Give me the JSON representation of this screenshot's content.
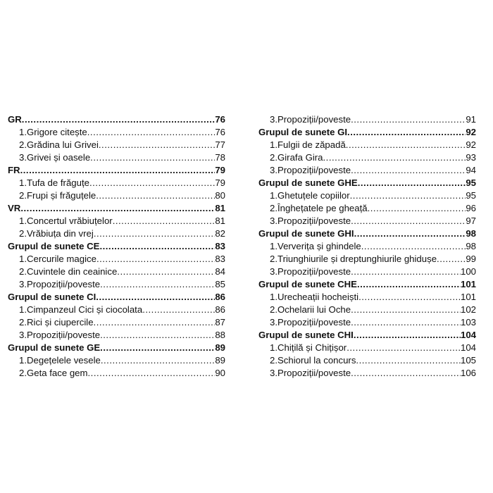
{
  "toc": {
    "left": [
      {
        "t": "GR",
        "p": "76",
        "h": true
      },
      {
        "t": "1.Grigore citește",
        "p": "76"
      },
      {
        "t": "2.Grădina lui Grivei",
        "p": "77"
      },
      {
        "t": "3.Grivei și oasele",
        "p": "78"
      },
      {
        "t": "FR",
        "p": "79",
        "h": true
      },
      {
        "t": "1.Tufa de frăguțe",
        "p": "79"
      },
      {
        "t": "2.Frupi și frăguțele",
        "p": "80"
      },
      {
        "t": "VR",
        "p": "81",
        "h": true
      },
      {
        "t": "1.Concertul vrăbiuțelor",
        "p": "81"
      },
      {
        "t": "2.Vrăbiuța din vrej",
        "p": "82"
      },
      {
        "t": "Grupul de sunete CE",
        "p": "83",
        "h": true
      },
      {
        "t": "1.Cercurile magice",
        "p": "83"
      },
      {
        "t": "2.Cuvintele din ceainice",
        "p": "84"
      },
      {
        "t": "3.Propoziții/poveste",
        "p": "85"
      },
      {
        "t": "Grupul de sunete CI",
        "p": "86",
        "h": true
      },
      {
        "t": "1.Cimpanzeul Cici și ciocolata",
        "p": "86"
      },
      {
        "t": "2.Rici și ciupercile",
        "p": "87"
      },
      {
        "t": "3.Propoziții/poveste",
        "p": "88"
      },
      {
        "t": "Grupul de sunete GE",
        "p": "89",
        "h": true
      },
      {
        "t": "1.Degețelele vesele",
        "p": "89"
      },
      {
        "t": "2.Geta face gem",
        "p": "90"
      }
    ],
    "right": [
      {
        "t": "3.Propoziții/poveste",
        "p": "91"
      },
      {
        "t": "Grupul de sunete GI",
        "p": "92",
        "h": true
      },
      {
        "t": "1.Fulgii de zăpadă",
        "p": "92"
      },
      {
        "t": "2.Girafa Gira",
        "p": "93"
      },
      {
        "t": "3.Propoziții/poveste",
        "p": "94"
      },
      {
        "t": "Grupul de sunete GHE",
        "p": "95",
        "h": true
      },
      {
        "t": "1.Ghetuțele copiilor",
        "p": "95"
      },
      {
        "t": "2.Înghețatele pe gheață",
        "p": "96"
      },
      {
        "t": "3.Propoziții/poveste",
        "p": "97"
      },
      {
        "t": "Grupul de sunete GHI",
        "p": "98",
        "h": true
      },
      {
        "t": "1.Ververița și ghindele",
        "p": "98"
      },
      {
        "t": "2.Triunghiurile și dreptunghiurile ghidușe",
        "p": "99"
      },
      {
        "t": "3.Propoziții/poveste",
        "p": "100"
      },
      {
        "t": "Grupul de sunete CHE",
        "p": "101",
        "h": true
      },
      {
        "t": "1.Urecheații hocheiști",
        "p": "101"
      },
      {
        "t": "2.Ochelarii lui Oche",
        "p": "102"
      },
      {
        "t": "3.Propoziții/poveste",
        "p": "103"
      },
      {
        "t": "Grupul de sunete CHI",
        "p": "104",
        "h": true
      },
      {
        "t": "1.Chițilă și Chițișor",
        "p": "104"
      },
      {
        "t": "2.Schiorul la concurs",
        "p": "105"
      },
      {
        "t": "3.Propoziții/poveste",
        "p": "106"
      }
    ]
  }
}
